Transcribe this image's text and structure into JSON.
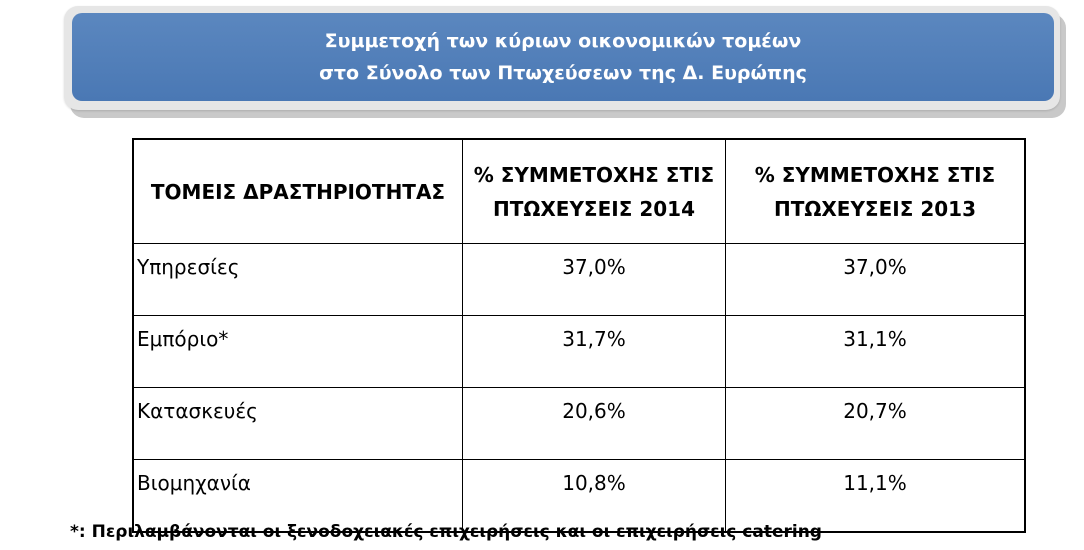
{
  "banner": {
    "line1": "Συμμετοχή των κύριων οικονομικών τομέων",
    "line2": "στο Σύνολο των Πτωχεύσεων της Δ. Ευρώπης"
  },
  "table": {
    "headers": [
      "ΤΟΜΕΙΣ ΔΡΑΣΤΗΡΙΟΤΗΤΑΣ",
      "% ΣΥΜΜΕΤΟΧΗΣ ΣΤΙΣ ΠΤΩΧΕΥΣΕΙΣ 2014",
      "% ΣΥΜΜΕΤΟΧΗΣ ΣΤΙΣ ΠΤΩΧΕΥΣΕΙΣ 2013"
    ],
    "rows": [
      {
        "sector": "Υπηρεσίες",
        "y2014": "37,0%",
        "y2013": "37,0%"
      },
      {
        "sector": "Εμπόριο*",
        "y2014": "31,7%",
        "y2013": "31,1%"
      },
      {
        "sector": "Κατασκευές",
        "y2014": "20,6%",
        "y2013": "20,7%"
      },
      {
        "sector": "Βιομηχανία",
        "y2014": "10,8%",
        "y2013": "11,1%"
      }
    ]
  },
  "footnote": "*: Περιλαμβάνονται οι ξενοδοχειακές επιχειρήσεις και οι επιχειρήσεις catering"
}
